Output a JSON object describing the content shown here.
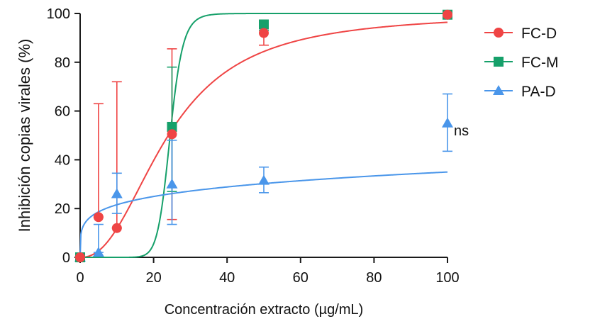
{
  "chart_data": {
    "type": "scatter",
    "xlabel": "Concentración extracto (µg/mL)",
    "ylabel": "Inhibición copias virales (%)",
    "xlim": [
      0,
      100
    ],
    "ylim": [
      0,
      100
    ],
    "xticks": [
      0,
      20,
      40,
      60,
      80,
      100
    ],
    "yticks": [
      0,
      20,
      40,
      60,
      80,
      100
    ],
    "grid": false,
    "legend_position": "right",
    "series": [
      {
        "name": "FC-D",
        "color": "#EF4444",
        "marker": "circle",
        "x": [
          0,
          5,
          10,
          25,
          50,
          100
        ],
        "y": [
          0,
          16.5,
          12,
          50.5,
          92,
          99.5
        ],
        "err_low": [
          0,
          16.5,
          12,
          15.5,
          87,
          99.5
        ],
        "err_high": [
          0,
          63,
          72,
          85.5,
          96,
          99.5
        ],
        "fit": {
          "model": "hill",
          "bottom": 0,
          "top": 100,
          "ec50": 24,
          "hill": 2.3
        }
      },
      {
        "name": "FC-M",
        "color": "#16A06A",
        "marker": "square",
        "x": [
          0,
          25,
          50,
          100
        ],
        "y": [
          0,
          53.5,
          95.5,
          99.5
        ],
        "err_low": [
          0,
          27,
          93,
          99.5
        ],
        "err_high": [
          0,
          78,
          97,
          99.5
        ],
        "fit": {
          "model": "hill",
          "bottom": 0,
          "top": 100,
          "ec50": 24.5,
          "hill": 14
        }
      },
      {
        "name": "PA-D",
        "color": "#4A96EA",
        "marker": "triangle",
        "x": [
          0,
          5,
          10,
          25,
          50,
          100
        ],
        "y": [
          0,
          2,
          26,
          30,
          31.5,
          55
        ],
        "err_low": [
          0,
          2,
          18,
          13.5,
          26.5,
          43.5
        ],
        "err_high": [
          0,
          13.5,
          34.5,
          48,
          37,
          67
        ],
        "fit": {
          "model": "power",
          "a": 13.3,
          "b": 0.21
        }
      }
    ],
    "annotations": [
      {
        "text": "ns",
        "x": 100,
        "y": 52
      }
    ]
  }
}
